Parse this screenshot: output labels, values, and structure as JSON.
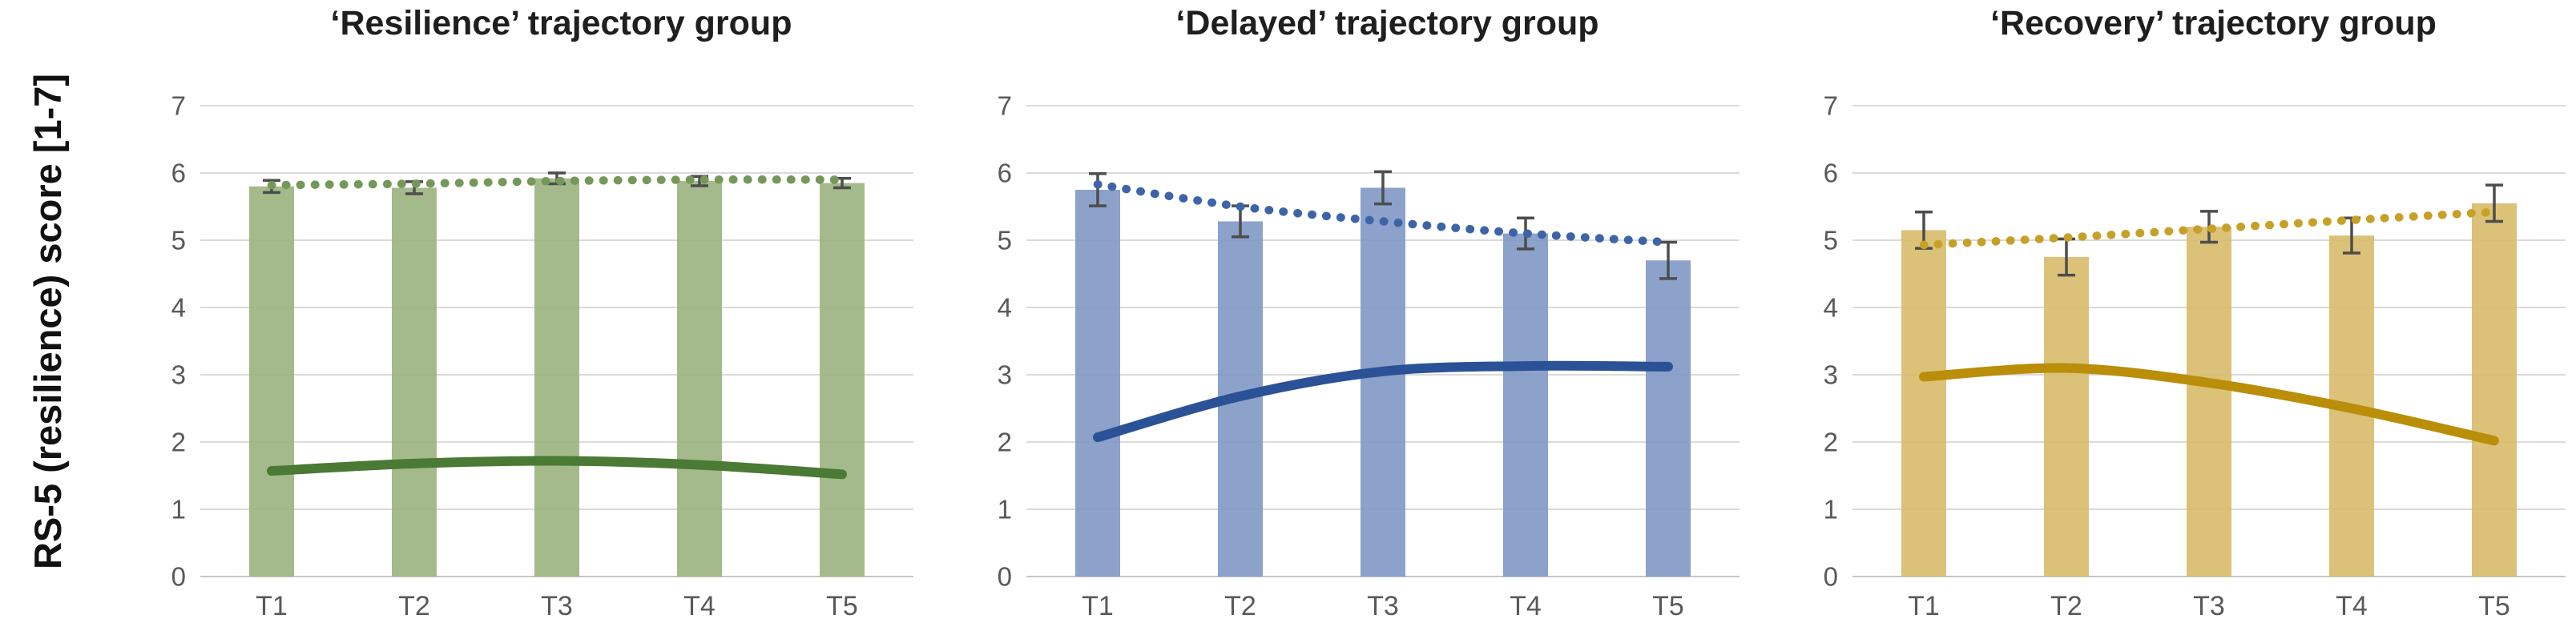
{
  "figure": {
    "y_axis_title": "RS-5 (resilience) score [1-7]"
  },
  "style": {
    "background": "#FFFFFF",
    "grid_color": "#DADADA",
    "baseline_color": "#C6C6C6",
    "error_bar_color": "#4D4D4D",
    "tick_label_color": "#595959",
    "title_color": "#1F1F1F"
  },
  "chart_data": [
    {
      "type": "bar",
      "title": "‘Resilience’ trajectory group",
      "categories": [
        "T1",
        "T2",
        "T3",
        "T4",
        "T5"
      ],
      "ylim": [
        0,
        7
      ],
      "yticks": [
        0,
        1,
        2,
        3,
        4,
        5,
        6,
        7
      ],
      "grid": true,
      "legend": "none",
      "series": [
        {
          "name": "observed-mean-bars",
          "type": "bar",
          "color": "#9AB37E",
          "values": [
            5.8,
            5.78,
            5.92,
            5.88,
            5.85
          ],
          "errors": [
            0.09,
            0.09,
            0.08,
            0.07,
            0.07
          ]
        },
        {
          "name": "dotted-trend-line",
          "type": "line-dotted",
          "color": "#75985A",
          "values": [
            5.82,
            5.84,
            5.88,
            5.9,
            5.9
          ]
        },
        {
          "name": "solid-trajectory-line",
          "type": "line",
          "color": "#4A7A33",
          "values": [
            1.57,
            1.68,
            1.72,
            1.66,
            1.52
          ]
        }
      ]
    },
    {
      "type": "bar",
      "title": "‘Delayed’ trajectory group",
      "categories": [
        "T1",
        "T2",
        "T3",
        "T4",
        "T5"
      ],
      "ylim": [
        0,
        7
      ],
      "yticks": [
        0,
        1,
        2,
        3,
        4,
        5,
        6,
        7
      ],
      "grid": true,
      "legend": "none",
      "series": [
        {
          "name": "observed-mean-bars",
          "type": "bar",
          "color": "#8098C5",
          "values": [
            5.75,
            5.28,
            5.78,
            5.1,
            4.7
          ],
          "errors": [
            0.24,
            0.23,
            0.24,
            0.23,
            0.27
          ]
        },
        {
          "name": "dotted-trend-line",
          "type": "line-dotted",
          "color": "#3E64A8",
          "values": [
            5.83,
            5.5,
            5.28,
            5.1,
            4.97
          ]
        },
        {
          "name": "solid-trajectory-line",
          "type": "line",
          "color": "#2B5197",
          "values": [
            2.07,
            2.68,
            3.05,
            3.13,
            3.12
          ]
        }
      ]
    },
    {
      "type": "bar",
      "title": "‘Recovery’ trajectory group",
      "categories": [
        "T1",
        "T2",
        "T3",
        "T4",
        "T5"
      ],
      "ylim": [
        0,
        7
      ],
      "yticks": [
        0,
        1,
        2,
        3,
        4,
        5,
        6,
        7
      ],
      "grid": true,
      "legend": "none",
      "series": [
        {
          "name": "observed-mean-bars",
          "type": "bar",
          "color": "#D7BB69",
          "values": [
            5.15,
            4.75,
            5.2,
            5.07,
            5.55
          ],
          "errors": [
            0.27,
            0.27,
            0.23,
            0.26,
            0.27
          ]
        },
        {
          "name": "dotted-trend-line",
          "type": "line-dotted",
          "color": "#C7A127",
          "values": [
            4.93,
            5.04,
            5.17,
            5.3,
            5.42
          ]
        },
        {
          "name": "solid-trajectory-line",
          "type": "line",
          "color": "#BA8E09",
          "values": [
            2.97,
            3.1,
            2.88,
            2.5,
            2.02
          ]
        }
      ]
    }
  ]
}
